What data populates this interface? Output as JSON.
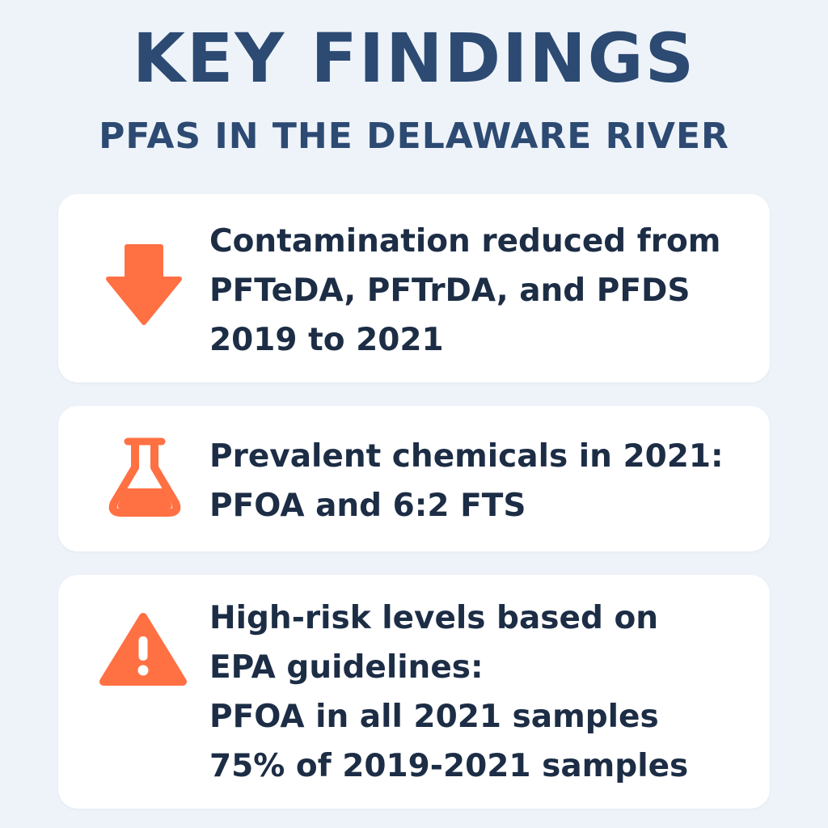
{
  "header": {
    "title": "KEY FINDINGS",
    "subtitle": "PFAS IN THE DELAWARE RIVER"
  },
  "colors": {
    "background": "#eef3f9",
    "heading": "#2c4a72",
    "body_text": "#1c2d45",
    "accent": "#ff7043",
    "card": "#ffffff"
  },
  "findings": [
    {
      "icon": "down-arrow-icon",
      "lines": [
        "Contamination reduced from",
        "PFTeDA, PFTrDA, and PFDS",
        "2019 to 2021"
      ]
    },
    {
      "icon": "flask-icon",
      "lines": [
        "Prevalent chemicals in 2021:",
        "PFOA and 6:2 FTS"
      ]
    },
    {
      "icon": "warning-icon",
      "lines": [
        "High-risk levels based on",
        "EPA guidelines:",
        "PFOA in all 2021 samples",
        "75% of 2019-2021 samples"
      ]
    }
  ]
}
